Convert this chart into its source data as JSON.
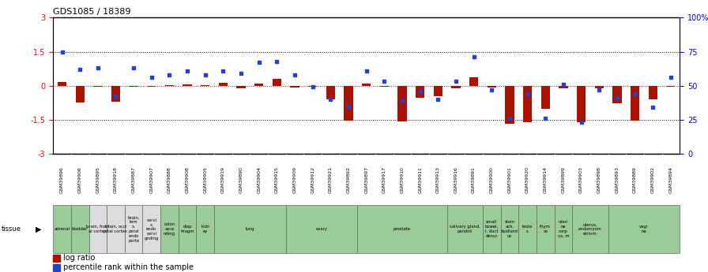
{
  "title": "GDS1085 / 18389",
  "gsm_labels": [
    "GSM39896",
    "GSM39906",
    "GSM39895",
    "GSM39918",
    "GSM39887",
    "GSM39907",
    "GSM39888",
    "GSM39908",
    "GSM39905",
    "GSM39919",
    "GSM39890",
    "GSM39904",
    "GSM39915",
    "GSM39909",
    "GSM39912",
    "GSM39921",
    "GSM39892",
    "GSM39897",
    "GSM39917",
    "GSM39910",
    "GSM39911",
    "GSM39913",
    "GSM39916",
    "GSM39891",
    "GSM39900",
    "GSM39901",
    "GSM39920",
    "GSM39914",
    "GSM39899",
    "GSM39903",
    "GSM39898",
    "GSM39893",
    "GSM39889",
    "GSM39902",
    "GSM39894"
  ],
  "log_ratio": [
    0.15,
    -0.75,
    -0.05,
    -0.72,
    -0.03,
    -0.04,
    0.04,
    0.06,
    0.03,
    0.12,
    -0.12,
    0.1,
    0.3,
    -0.08,
    -0.05,
    -0.6,
    -1.55,
    0.08,
    -0.05,
    -1.57,
    -0.55,
    -0.48,
    -0.12,
    0.38,
    -0.08,
    -1.68,
    -1.6,
    -1.03,
    -0.12,
    -1.6,
    -0.1,
    -0.78,
    -1.55,
    -0.62,
    -0.05
  ],
  "pct_rank": [
    75,
    62,
    63,
    42,
    63,
    56,
    58,
    61,
    58,
    61,
    59,
    67,
    68,
    58,
    49,
    40,
    35,
    61,
    53,
    39,
    46,
    40,
    53,
    71,
    47,
    26,
    44,
    26,
    51,
    23,
    47,
    41,
    44,
    34,
    56
  ],
  "tissue_groups": [
    {
      "label": "adrenal",
      "start": 0,
      "end": 1,
      "color": "#99cc99"
    },
    {
      "label": "bladder",
      "start": 1,
      "end": 2,
      "color": "#99cc99"
    },
    {
      "label": "brain, front\nal cortex",
      "start": 2,
      "end": 3,
      "color": "#dddddd"
    },
    {
      "label": "brain, occi\npital cortex",
      "start": 3,
      "end": 4,
      "color": "#dddddd"
    },
    {
      "label": "brain,\ntem\nx,\nporal\nendo\nporte",
      "start": 4,
      "end": 5,
      "color": "#dddddd"
    },
    {
      "label": "cervi\nx,\nendo\ncervi\ngnding",
      "start": 5,
      "end": 6,
      "color": "#dddddd"
    },
    {
      "label": "colon\nasce\nnding",
      "start": 6,
      "end": 7,
      "color": "#99cc99"
    },
    {
      "label": "diap\nhragm",
      "start": 7,
      "end": 8,
      "color": "#99cc99"
    },
    {
      "label": "kidn\ney",
      "start": 8,
      "end": 9,
      "color": "#99cc99"
    },
    {
      "label": "lung",
      "start": 9,
      "end": 13,
      "color": "#99cc99"
    },
    {
      "label": "ovary",
      "start": 13,
      "end": 17,
      "color": "#99cc99"
    },
    {
      "label": "prostate",
      "start": 17,
      "end": 22,
      "color": "#99cc99"
    },
    {
      "label": "salivary gland,\nparotid",
      "start": 22,
      "end": 24,
      "color": "#99cc99"
    },
    {
      "label": "small\nbowel,\nI, duct\ndenui",
      "start": 24,
      "end": 25,
      "color": "#99cc99"
    },
    {
      "label": "stom\nach,\nduofund\nus",
      "start": 25,
      "end": 26,
      "color": "#99cc99"
    },
    {
      "label": "teste\ns",
      "start": 26,
      "end": 27,
      "color": "#99cc99"
    },
    {
      "label": "thym\nus",
      "start": 27,
      "end": 28,
      "color": "#99cc99"
    },
    {
      "label": "uteri\nne\ncorp\nus, m",
      "start": 28,
      "end": 29,
      "color": "#99cc99"
    },
    {
      "label": "uterus,\nendomyom\netrium",
      "start": 29,
      "end": 31,
      "color": "#99cc99"
    },
    {
      "label": "vagi\nna",
      "start": 31,
      "end": 35,
      "color": "#99cc99"
    }
  ],
  "ylim_left": [
    -3,
    3
  ],
  "ylim_right": [
    0,
    100
  ],
  "yticks_left": [
    -3,
    -1.5,
    0,
    1.5,
    3
  ],
  "yticks_right": [
    0,
    25,
    50,
    75,
    100
  ],
  "bar_color": "#aa1100",
  "dot_color": "#2244cc",
  "background_color": "#ffffff",
  "gsm_bg_color": "#cccccc",
  "tissue_border_color": "#666666"
}
